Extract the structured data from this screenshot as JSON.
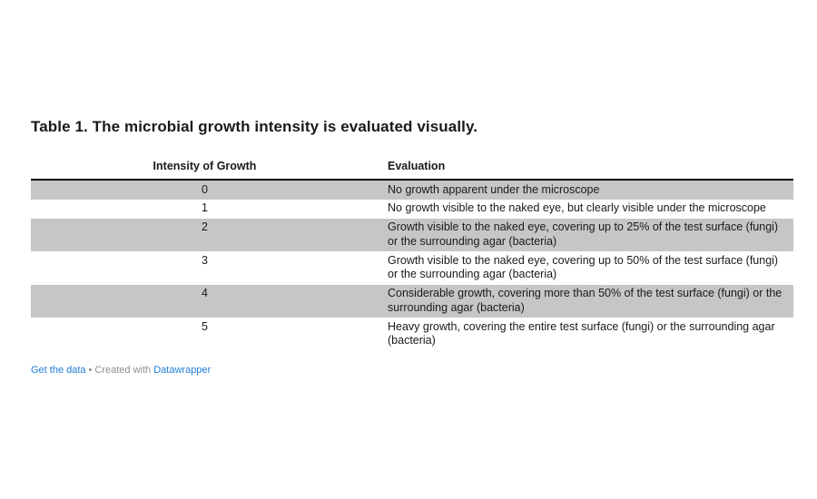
{
  "title": "Table 1. The microbial growth intensity is evaluated visually.",
  "table": {
    "columns": {
      "intensity": "Intensity of Growth",
      "evaluation": "Evaluation"
    },
    "rows": [
      {
        "intensity": "0",
        "evaluation": "No growth apparent under the microscope"
      },
      {
        "intensity": "1",
        "evaluation": "No growth visible to the naked eye, but clearly visible under the microscope"
      },
      {
        "intensity": "2",
        "evaluation": "Growth visible to the naked eye, covering up to 25% of the test surface (fungi) or the surrounding agar (bacteria)"
      },
      {
        "intensity": "3",
        "evaluation": "Growth visible to the naked eye, covering up to 50% of the test surface (fungi) or the surrounding agar (bacteria)"
      },
      {
        "intensity": "4",
        "evaluation": "Considerable growth, covering more than 50% of the test surface (fungi) or the surrounding agar (bacteria)"
      },
      {
        "intensity": "5",
        "evaluation": "Heavy growth, covering the entire test surface (fungi) or the surrounding agar (bacteria)"
      }
    ],
    "stripe_color": "#c6c6c6",
    "header_border_color": "#000000"
  },
  "footer": {
    "get_data_label": "Get the data",
    "separator": "•",
    "created_with": "Created with",
    "brand": "Datawrapper",
    "link_color": "#1f7bd4",
    "muted_color": "#8e8e8e"
  }
}
